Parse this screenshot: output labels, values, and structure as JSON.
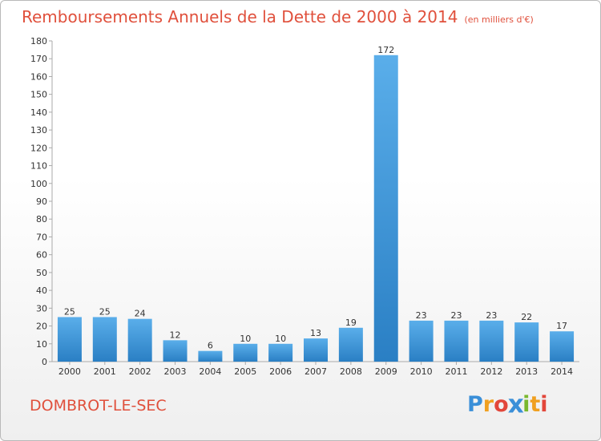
{
  "header": {
    "title": "Remboursements Annuels de la Dette de 2000 à 2014",
    "subtitle": "(en milliers d'€)"
  },
  "footer": {
    "commune": "DOMBROT-LE-SEC",
    "brand": "Proxiti",
    "brand_letters": [
      {
        "ch": "P",
        "color": "#3a8fd8"
      },
      {
        "ch": "r",
        "color": "#f0a020"
      },
      {
        "ch": "o",
        "color": "#e2463a"
      },
      {
        "ch": "x",
        "color": "#3a8fd8"
      },
      {
        "ch": "i",
        "color": "#7ab82e"
      },
      {
        "ch": "t",
        "color": "#f0a020"
      },
      {
        "ch": "i",
        "color": "#e2463a"
      }
    ]
  },
  "chart_data": {
    "type": "bar",
    "categories": [
      "2000",
      "2001",
      "2002",
      "2003",
      "2004",
      "2005",
      "2006",
      "2007",
      "2008",
      "2009",
      "2010",
      "2011",
      "2012",
      "2013",
      "2014"
    ],
    "values": [
      25,
      25,
      24,
      12,
      6,
      10,
      10,
      13,
      19,
      172,
      23,
      23,
      23,
      22,
      17
    ],
    "title": "Remboursements Annuels de la Dette de 2000 à 2014",
    "xlabel": "",
    "ylabel": "",
    "ylim": [
      0,
      180
    ],
    "ytick_step": 10,
    "grid": false,
    "bar_color_light": "#5aaeea",
    "bar_color_dark": "#2a7fc4",
    "label_color": "#333333",
    "title_color": "#e0503c"
  }
}
